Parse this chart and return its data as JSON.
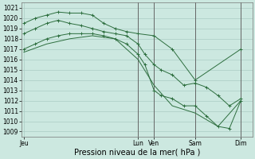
{
  "background_color": "#cce8e0",
  "grid_color": "#aaccc4",
  "line_color": "#2d6e3e",
  "ylim": [
    1008.5,
    1021.5
  ],
  "yticks": [
    1009,
    1010,
    1011,
    1012,
    1013,
    1014,
    1015,
    1016,
    1017,
    1018,
    1019,
    1020,
    1021
  ],
  "xlabel": "Pression niveau de la mer( hPa )",
  "xlabel_fontsize": 7,
  "tick_fontsize": 5.5,
  "xtick_labels": [
    "Jeu",
    "Lun",
    "Ven",
    "Sam",
    "Dim"
  ],
  "xtick_positions": [
    0,
    5.0,
    5.7,
    7.5,
    9.5
  ],
  "xlim": [
    -0.1,
    10.0
  ],
  "vlines": [
    5.0,
    5.7,
    7.5,
    9.5
  ],
  "vline_color": "#666666",
  "series": [
    {
      "x": [
        0.0,
        0.5,
        1.0,
        1.5,
        2.0,
        2.5,
        3.0,
        3.5,
        4.0,
        4.5,
        5.0,
        5.7,
        6.5,
        7.5,
        9.5
      ],
      "y": [
        1019.5,
        1020.0,
        1020.3,
        1020.6,
        1020.5,
        1020.5,
        1020.3,
        1019.5,
        1019.0,
        1018.7,
        1018.5,
        1018.3,
        1017.0,
        1014.0,
        1017.0
      ],
      "marker": true
    },
    {
      "x": [
        0.0,
        0.5,
        1.0,
        1.5,
        2.0,
        2.5,
        3.0,
        3.5,
        4.0,
        4.5,
        5.0,
        5.3,
        5.7,
        6.0,
        6.5,
        7.0,
        7.5,
        8.0,
        8.5,
        9.0,
        9.5
      ],
      "y": [
        1018.5,
        1019.0,
        1019.5,
        1019.8,
        1019.5,
        1019.3,
        1019.0,
        1018.7,
        1018.5,
        1018.3,
        1017.5,
        1016.5,
        1015.5,
        1015.0,
        1014.5,
        1013.5,
        1013.7,
        1013.3,
        1012.5,
        1011.5,
        1012.2
      ],
      "marker": true
    },
    {
      "x": [
        0.0,
        0.5,
        1.0,
        1.5,
        2.0,
        2.5,
        3.0,
        3.5,
        4.0,
        4.5,
        5.0,
        5.3,
        5.7,
        6.0,
        6.5,
        7.0,
        7.5,
        8.0,
        8.5,
        9.0,
        9.5
      ],
      "y": [
        1017.0,
        1017.5,
        1018.0,
        1018.3,
        1018.5,
        1018.5,
        1018.5,
        1018.3,
        1018.0,
        1017.5,
        1016.5,
        1015.5,
        1013.0,
        1012.5,
        1012.2,
        1011.5,
        1011.5,
        1010.5,
        1009.5,
        1009.3,
        1012.0
      ],
      "marker": true
    },
    {
      "x": [
        0.0,
        1.0,
        2.0,
        3.0,
        4.0,
        5.0,
        5.7,
        6.5,
        7.5,
        8.5,
        9.5
      ],
      "y": [
        1016.7,
        1017.5,
        1018.0,
        1018.3,
        1018.0,
        1016.0,
        1013.5,
        1011.5,
        1010.8,
        1009.5,
        1012.0
      ],
      "marker": false
    }
  ]
}
